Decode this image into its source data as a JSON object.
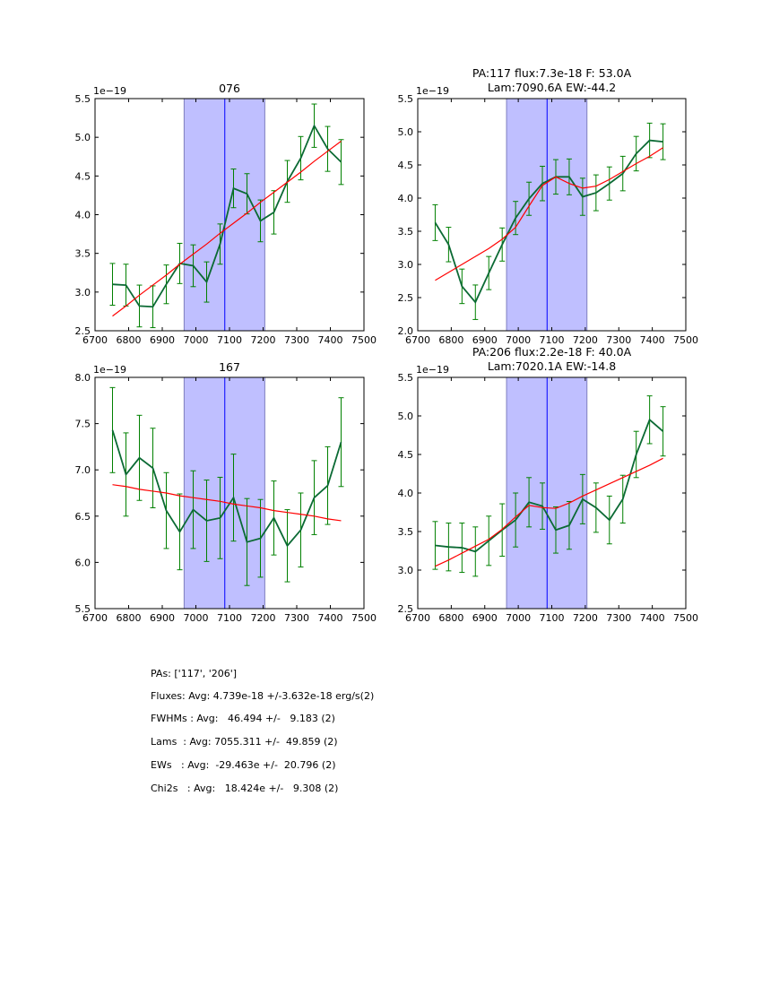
{
  "chart_data": [
    {
      "type": "line",
      "title": [
        "076"
      ],
      "offset_label": "1e−19",
      "x": [
        6752,
        6792,
        6832,
        6872,
        6912,
        6952,
        6992,
        7032,
        7072,
        7112,
        7152,
        7192,
        7232,
        7272,
        7312,
        7352,
        7392,
        7432
      ],
      "series": [
        {
          "name": "flux",
          "values": [
            3.1,
            3.09,
            2.82,
            2.81,
            3.1,
            3.37,
            3.34,
            3.13,
            3.62,
            4.34,
            4.27,
            3.92,
            4.03,
            4.43,
            4.73,
            5.15,
            4.85,
            4.68
          ],
          "errors": [
            0.27,
            0.27,
            0.27,
            0.27,
            0.25,
            0.26,
            0.27,
            0.26,
            0.26,
            0.25,
            0.26,
            0.27,
            0.28,
            0.27,
            0.28,
            0.28,
            0.29,
            0.29
          ]
        },
        {
          "name": "fit",
          "values": [
            2.69,
            2.82,
            2.96,
            3.09,
            3.22,
            3.36,
            3.49,
            3.62,
            3.76,
            3.89,
            4.02,
            4.16,
            4.29,
            4.42,
            4.55,
            4.69,
            4.82,
            4.95
          ]
        }
      ],
      "xlim": [
        6700,
        7500
      ],
      "ylim": [
        2.5,
        5.5
      ],
      "xticks": [
        "6700",
        "6800",
        "6900",
        "7000",
        "7100",
        "7200",
        "7300",
        "7400",
        "7500"
      ],
      "yticks": [
        "2.5",
        "3.0",
        "3.5",
        "4.0",
        "4.5",
        "5.0",
        "5.5"
      ],
      "band": [
        6965,
        7205
      ],
      "line_x": 7086
    },
    {
      "type": "line",
      "title": [
        "PA:117 flux:7.3e-18 F: 53.0A",
        "Lam:7090.6A EW:-44.2"
      ],
      "offset_label": "1e−19",
      "x": [
        6752,
        6792,
        6832,
        6872,
        6912,
        6952,
        6992,
        7032,
        7072,
        7112,
        7152,
        7192,
        7232,
        7272,
        7312,
        7352,
        7392,
        7432
      ],
      "series": [
        {
          "name": "flux",
          "values": [
            3.63,
            3.3,
            2.67,
            2.43,
            2.87,
            3.3,
            3.7,
            3.99,
            4.22,
            4.32,
            4.32,
            4.02,
            4.08,
            4.22,
            4.37,
            4.67,
            4.87,
            4.85
          ],
          "errors": [
            0.27,
            0.26,
            0.26,
            0.26,
            0.25,
            0.25,
            0.25,
            0.25,
            0.26,
            0.26,
            0.27,
            0.28,
            0.27,
            0.25,
            0.26,
            0.26,
            0.26,
            0.27
          ]
        },
        {
          "name": "fit",
          "values": [
            2.76,
            2.88,
            3.0,
            3.12,
            3.24,
            3.38,
            3.56,
            3.88,
            4.19,
            4.32,
            4.22,
            4.15,
            4.18,
            4.28,
            4.4,
            4.52,
            4.63,
            4.76
          ]
        }
      ],
      "xlim": [
        6700,
        7500
      ],
      "ylim": [
        2.0,
        5.5
      ],
      "xticks": [
        "6700",
        "6800",
        "6900",
        "7000",
        "7100",
        "7200",
        "7300",
        "7400",
        "7500"
      ],
      "yticks": [
        "2.0",
        "2.5",
        "3.0",
        "3.5",
        "4.0",
        "4.5",
        "5.0",
        "5.5"
      ],
      "band": [
        6965,
        7205
      ],
      "line_x": 7086
    },
    {
      "type": "line",
      "title": [
        "167"
      ],
      "offset_label": "1e−19",
      "x": [
        6752,
        6792,
        6832,
        6872,
        6912,
        6952,
        6992,
        7032,
        7072,
        7112,
        7152,
        7192,
        7232,
        7272,
        7312,
        7352,
        7392,
        7432
      ],
      "series": [
        {
          "name": "flux",
          "values": [
            7.43,
            6.95,
            7.13,
            7.02,
            6.56,
            6.33,
            6.57,
            6.45,
            6.48,
            6.7,
            6.22,
            6.26,
            6.48,
            6.18,
            6.35,
            6.7,
            6.83,
            7.3
          ],
          "errors": [
            0.46,
            0.45,
            0.46,
            0.43,
            0.41,
            0.41,
            0.42,
            0.44,
            0.44,
            0.47,
            0.47,
            0.42,
            0.4,
            0.39,
            0.4,
            0.4,
            0.42,
            0.48
          ]
        },
        {
          "name": "fit",
          "values": [
            6.84,
            6.82,
            6.79,
            6.77,
            6.75,
            6.72,
            6.7,
            6.68,
            6.66,
            6.63,
            6.61,
            6.59,
            6.56,
            6.54,
            6.52,
            6.5,
            6.47,
            6.45
          ]
        }
      ],
      "xlim": [
        6700,
        7500
      ],
      "ylim": [
        5.5,
        8.0
      ],
      "xticks": [
        "6700",
        "6800",
        "6900",
        "7000",
        "7100",
        "7200",
        "7300",
        "7400",
        "7500"
      ],
      "yticks": [
        "5.5",
        "6.0",
        "6.5",
        "7.0",
        "7.5",
        "8.0"
      ],
      "band": [
        6965,
        7205
      ],
      "line_x": 7086
    },
    {
      "type": "line",
      "title": [
        "PA:206 flux:2.2e-18 F: 40.0A",
        "Lam:7020.1A EW:-14.8"
      ],
      "offset_label": "1e−19",
      "x": [
        6752,
        6792,
        6832,
        6872,
        6912,
        6952,
        6992,
        7032,
        7072,
        7112,
        7152,
        7192,
        7232,
        7272,
        7312,
        7352,
        7392,
        7432
      ],
      "series": [
        {
          "name": "flux",
          "values": [
            3.32,
            3.3,
            3.29,
            3.24,
            3.38,
            3.52,
            3.65,
            3.88,
            3.83,
            3.52,
            3.58,
            3.92,
            3.81,
            3.65,
            3.92,
            4.5,
            4.95,
            4.8
          ],
          "errors": [
            0.31,
            0.31,
            0.32,
            0.32,
            0.32,
            0.34,
            0.35,
            0.32,
            0.3,
            0.3,
            0.31,
            0.32,
            0.32,
            0.31,
            0.31,
            0.3,
            0.31,
            0.32
          ]
        },
        {
          "name": "fit",
          "values": [
            3.05,
            3.13,
            3.22,
            3.31,
            3.4,
            3.53,
            3.69,
            3.84,
            3.81,
            3.8,
            3.87,
            3.96,
            4.04,
            4.12,
            4.2,
            4.28,
            4.36,
            4.45
          ]
        }
      ],
      "xlim": [
        6700,
        7500
      ],
      "ylim": [
        2.5,
        5.5
      ],
      "xticks": [
        "6700",
        "6800",
        "6900",
        "7000",
        "7100",
        "7200",
        "7300",
        "7400",
        "7500"
      ],
      "yticks": [
        "2.5",
        "3.0",
        "3.5",
        "4.0",
        "4.5",
        "5.0",
        "5.5"
      ],
      "band": [
        6965,
        7205
      ],
      "line_x": 7086
    }
  ],
  "stats": [
    "PAs: ['117', '206']",
    "Fluxes: Avg: 4.739e-18 +/-3.632e-18 erg/s(2)",
    "FWHMs : Avg:   46.494 +/-   9.183 (2)",
    "Lams  : Avg: 7055.311 +/-  49.859 (2)",
    "EWs   : Avg:  -29.463e +/-  20.796 (2)",
    "Chi2s   : Avg:   18.424e +/-   9.308 (2)"
  ],
  "colors": {
    "data": "#0b6a34",
    "errorbar": "#008000",
    "fit": "#ff0000",
    "band": "#bfbfff",
    "band_edge": "#7f7fbf",
    "line": "#0000ff"
  }
}
